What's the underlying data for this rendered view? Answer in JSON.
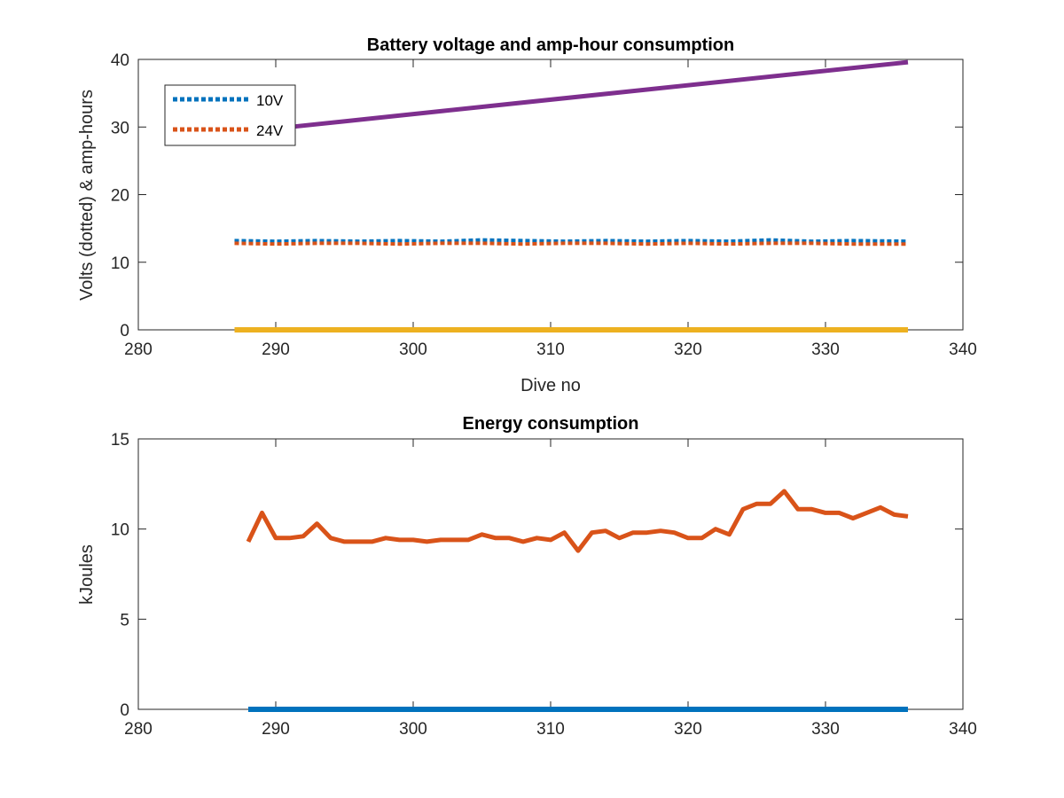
{
  "chart_data": [
    {
      "type": "line",
      "title": "Battery voltage and amp-hour consumption",
      "xlabel": "Dive no",
      "ylabel": "Volts (dotted) & amp-hours",
      "xlim": [
        280,
        340
      ],
      "ylim": [
        0,
        40
      ],
      "xticks": [
        280,
        290,
        300,
        310,
        320,
        330,
        340
      ],
      "yticks": [
        0,
        10,
        20,
        30,
        40
      ],
      "legend_position": "top-left",
      "series": [
        {
          "name": "10V",
          "style": "dotted",
          "color": "#0072BD",
          "x": [
            287,
            290,
            293,
            296,
            299,
            302,
            305,
            308,
            311,
            314,
            317,
            320,
            323,
            326,
            329,
            332,
            336
          ],
          "y": [
            13.2,
            13.1,
            13.2,
            13.1,
            13.2,
            13.1,
            13.3,
            13.2,
            13.1,
            13.2,
            13.1,
            13.2,
            13.1,
            13.3,
            13.1,
            13.2,
            13.1
          ]
        },
        {
          "name": "24V",
          "style": "dotted",
          "color": "#D95319",
          "x": [
            287,
            290,
            293,
            296,
            299,
            302,
            305,
            308,
            311,
            314,
            317,
            320,
            323,
            326,
            329,
            332,
            336
          ],
          "y": [
            12.8,
            12.7,
            12.8,
            12.8,
            12.7,
            12.8,
            12.8,
            12.7,
            12.8,
            12.8,
            12.7,
            12.8,
            12.7,
            12.8,
            12.8,
            12.7,
            12.7
          ]
        },
        {
          "style": "solid",
          "color": "#EDB120",
          "x": [
            287,
            336
          ],
          "y": [
            0,
            0
          ]
        },
        {
          "style": "solid",
          "color": "#7E2F8E",
          "x": [
            291,
            336
          ],
          "y": [
            30.0,
            39.6
          ]
        }
      ]
    },
    {
      "type": "line",
      "title": "Energy consumption",
      "xlabel": "",
      "ylabel": "kJoules",
      "xlim": [
        280,
        340
      ],
      "ylim": [
        0,
        15
      ],
      "xticks": [
        280,
        290,
        300,
        310,
        320,
        330,
        340
      ],
      "yticks": [
        0,
        5,
        10,
        15
      ],
      "series": [
        {
          "style": "solid",
          "color": "#D95319",
          "x": [
            288,
            289,
            290,
            291,
            292,
            293,
            294,
            295,
            296,
            297,
            298,
            299,
            300,
            301,
            302,
            303,
            304,
            305,
            306,
            307,
            308,
            309,
            310,
            311,
            312,
            313,
            314,
            315,
            316,
            317,
            318,
            319,
            320,
            321,
            322,
            323,
            324,
            325,
            326,
            327,
            328,
            329,
            330,
            331,
            332,
            333,
            334,
            335,
            336
          ],
          "y": [
            9.3,
            10.9,
            9.5,
            9.5,
            9.6,
            10.3,
            9.5,
            9.3,
            9.3,
            9.3,
            9.5,
            9.4,
            9.4,
            9.3,
            9.4,
            9.4,
            9.4,
            9.7,
            9.5,
            9.5,
            9.3,
            9.5,
            9.4,
            9.8,
            8.8,
            9.8,
            9.9,
            9.5,
            9.8,
            9.8,
            9.9,
            9.8,
            9.5,
            9.5,
            10.0,
            9.7,
            11.1,
            11.4,
            11.4,
            12.1,
            11.1,
            11.1,
            10.9,
            10.9,
            10.6,
            10.9,
            11.2,
            10.8,
            10.7
          ]
        },
        {
          "style": "solid",
          "color": "#0072BD",
          "x": [
            288,
            336
          ],
          "y": [
            0,
            0
          ]
        }
      ]
    }
  ]
}
